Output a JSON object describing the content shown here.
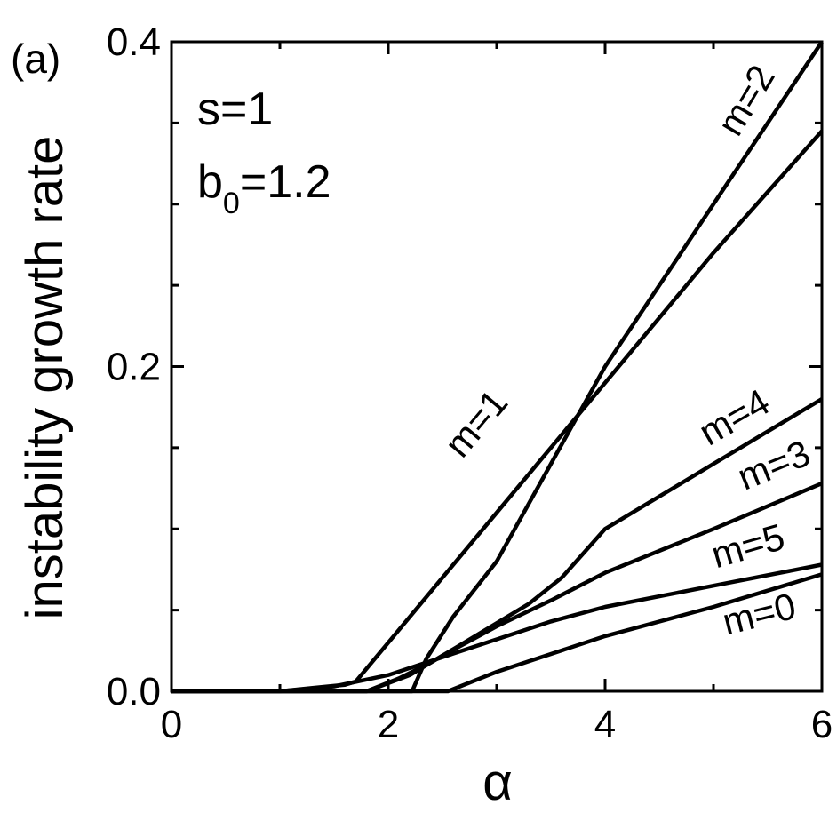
{
  "panel_label": "(a)",
  "annotations": {
    "s": "s=1",
    "b_prefix": "b",
    "b_sub": "0",
    "b_value": "=1.2"
  },
  "chart_data": {
    "type": "line",
    "title": "",
    "xlabel": "α",
    "ylabel": "instability growth rate",
    "xlim": [
      0,
      6
    ],
    "ylim": [
      0,
      0.4
    ],
    "x_ticks": [
      0,
      2,
      4,
      6
    ],
    "y_ticks": [
      0.0,
      0.2,
      0.4
    ],
    "x_tick_labels": [
      "0",
      "2",
      "4",
      "6"
    ],
    "y_tick_labels": [
      "0.0",
      "0.2",
      "0.4"
    ],
    "grid": false,
    "legend": "none",
    "series": [
      {
        "name": "m=0",
        "x": [
          0,
          2.55,
          3.0,
          4.0,
          5.0,
          6.0
        ],
        "y": [
          0,
          0,
          0.012,
          0.034,
          0.052,
          0.072
        ]
      },
      {
        "name": "m=1",
        "x": [
          0,
          1.0,
          1.3,
          1.6,
          1.7,
          2.2,
          3.0,
          4.0,
          5.0,
          6.0
        ],
        "y": [
          0,
          0,
          0.002,
          0.004,
          0.006,
          0.046,
          0.11,
          0.19,
          0.27,
          0.345
        ]
      },
      {
        "name": "m=2",
        "x": [
          0,
          2.22,
          2.35,
          2.6,
          3.0,
          3.5,
          4.0,
          5.0,
          6.0
        ],
        "y": [
          0,
          0,
          0.02,
          0.046,
          0.08,
          0.14,
          0.2,
          0.3,
          0.4
        ]
      },
      {
        "name": "m=3",
        "x": [
          0,
          1.8,
          2.2,
          2.5,
          3.0,
          3.5,
          4.0,
          5.0,
          6.0
        ],
        "y": [
          0,
          0,
          0.01,
          0.022,
          0.04,
          0.056,
          0.073,
          0.1,
          0.128
        ]
      },
      {
        "name": "m=4",
        "x": [
          0,
          1.8,
          2.1,
          2.4,
          2.8,
          3.3,
          3.6,
          4.0,
          5.0,
          6.0
        ],
        "y": [
          0,
          0,
          0.008,
          0.018,
          0.034,
          0.054,
          0.07,
          0.1,
          0.14,
          0.18
        ]
      },
      {
        "name": "m=5",
        "x": [
          0,
          1.0,
          1.5,
          2.0,
          2.5,
          3.0,
          3.5,
          4.0,
          5.0,
          6.0
        ],
        "y": [
          0,
          0,
          0.003,
          0.01,
          0.021,
          0.032,
          0.043,
          0.052,
          0.065,
          0.078
        ]
      }
    ]
  },
  "series_labels": [
    {
      "text": "m=1",
      "x": 2.9,
      "y": 0.16,
      "angle": -50
    },
    {
      "text": "m=2",
      "x": 5.4,
      "y": 0.36,
      "angle": -59
    },
    {
      "text": "m=4",
      "x": 5.25,
      "y": 0.162,
      "angle": -30
    },
    {
      "text": "m=3",
      "x": 5.6,
      "y": 0.132,
      "angle": -22
    },
    {
      "text": "m=5",
      "x": 5.35,
      "y": 0.082,
      "angle": -16
    },
    {
      "text": "m=0",
      "x": 5.45,
      "y": 0.04,
      "angle": -14
    }
  ]
}
